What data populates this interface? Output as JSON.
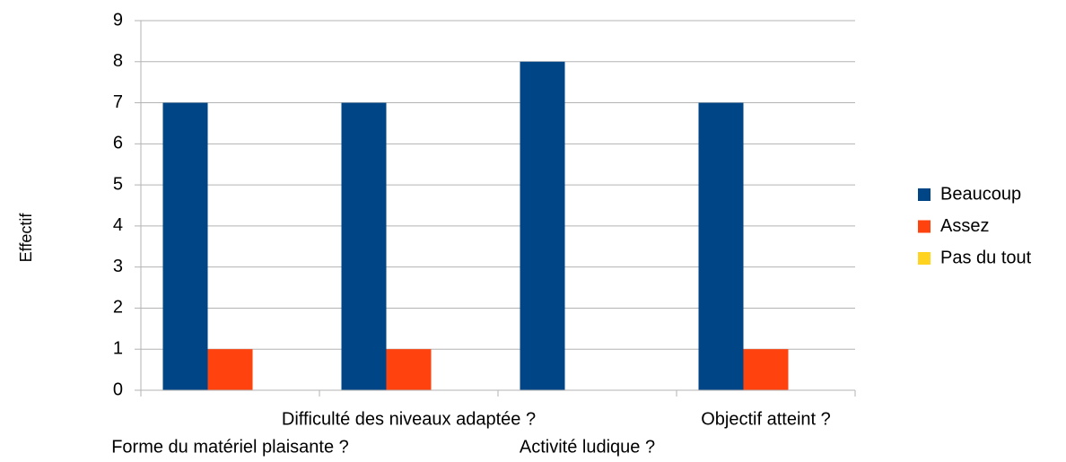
{
  "chart_data": {
    "type": "bar",
    "y_label": "Effectif",
    "categories": [
      "Forme du matériel plaisante ?",
      "Difficulté des niveaux adaptée ?",
      "Activité ludique ?",
      "Objectif atteint ?"
    ],
    "series": [
      {
        "name": "Beaucoup",
        "color": "#004586",
        "values": [
          7,
          7,
          8,
          7
        ]
      },
      {
        "name": "Assez",
        "color": "#ff420e",
        "values": [
          1,
          1,
          0,
          1
        ]
      },
      {
        "name": "Pas du tout",
        "color": "#ffd320",
        "values": [
          0,
          0,
          0,
          0
        ]
      }
    ],
    "ylim": [
      0,
      9
    ],
    "yticks": [
      0,
      1,
      2,
      3,
      4,
      5,
      6,
      7,
      8,
      9
    ],
    "grid": true,
    "legend": "right"
  }
}
